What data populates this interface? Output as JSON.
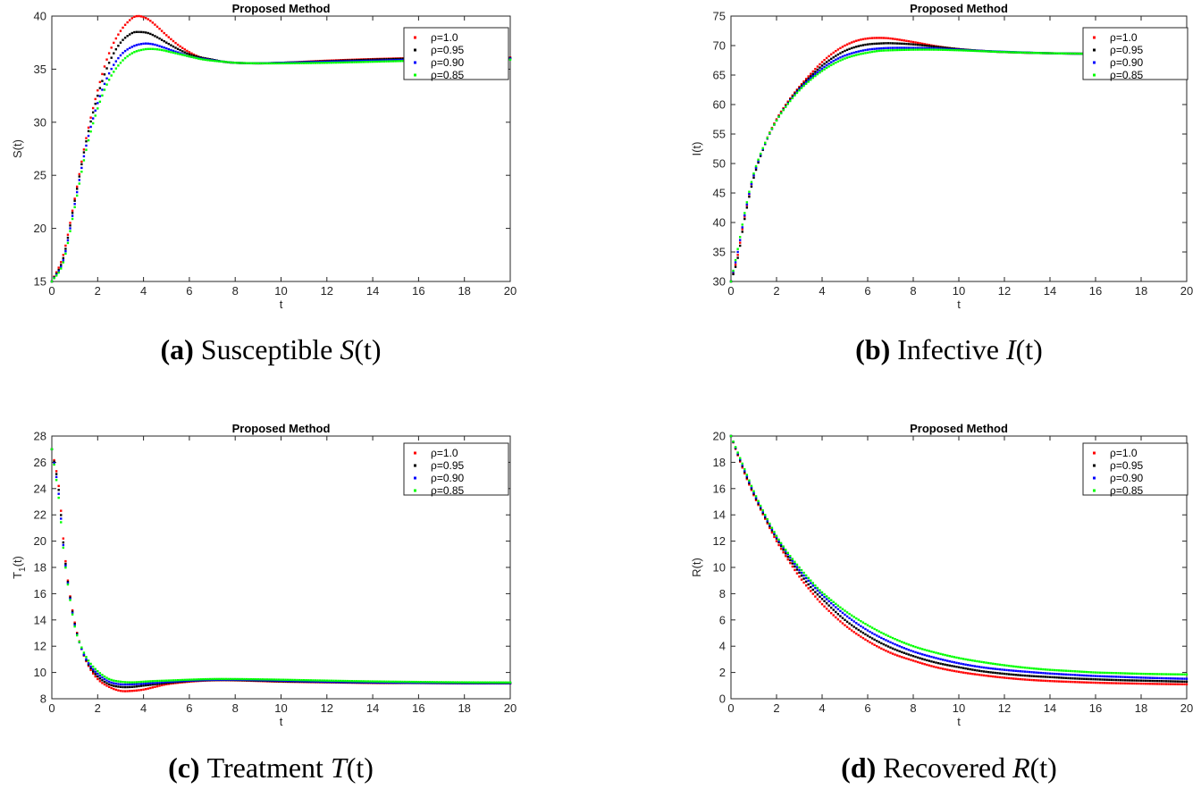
{
  "chart_data": [
    {
      "id": "S",
      "type": "scatter",
      "title": "Proposed Method",
      "xlabel": "t",
      "ylabel": "S(t)",
      "xlim": [
        0,
        20
      ],
      "ylim": [
        15,
        40
      ],
      "xticks": [
        0,
        2,
        4,
        6,
        8,
        10,
        12,
        14,
        16,
        18,
        20
      ],
      "yticks": [
        15,
        20,
        25,
        30,
        35,
        40
      ],
      "caption": {
        "tag": "(a)",
        "text": "Susceptible",
        "var": "S",
        "arg": "(t)"
      },
      "series": [
        {
          "name": "ρ=1.0",
          "color": "#ff0000",
          "x": [
            0,
            0.5,
            1,
            1.5,
            2,
            2.5,
            3,
            3.5,
            3.8,
            4.2,
            4.6,
            5,
            5.5,
            6,
            6.5,
            7,
            7.5,
            8,
            9,
            10,
            12,
            14,
            16,
            18,
            20
          ],
          "y": [
            15,
            17.5,
            22.8,
            28.5,
            33.0,
            36.5,
            38.6,
            39.8,
            40.0,
            39.7,
            39.0,
            38.2,
            37.3,
            36.6,
            36.1,
            35.9,
            35.7,
            35.6,
            35.55,
            35.6,
            35.8,
            35.95,
            36.05,
            36.1,
            36.1
          ]
        },
        {
          "name": "ρ=0.95",
          "color": "#000000",
          "x": [
            0,
            0.5,
            1,
            1.5,
            2,
            2.5,
            3,
            3.5,
            3.8,
            4.2,
            4.6,
            5,
            5.5,
            6,
            6.5,
            7,
            7.5,
            8,
            9,
            10,
            12,
            14,
            16,
            18,
            20
          ],
          "y": [
            15,
            17.2,
            22.6,
            28.2,
            32.5,
            35.6,
            37.5,
            38.4,
            38.5,
            38.4,
            38.0,
            37.5,
            36.9,
            36.4,
            36.1,
            35.9,
            35.7,
            35.6,
            35.55,
            35.6,
            35.75,
            35.9,
            36.0,
            36.0,
            36.05
          ]
        },
        {
          "name": "ρ=0.90",
          "color": "#0000ff",
          "x": [
            0,
            0.5,
            1,
            1.5,
            2,
            2.5,
            3,
            3.5,
            4,
            4.4,
            4.8,
            5.2,
            5.6,
            6,
            6.5,
            7,
            7.5,
            8,
            9,
            10,
            12,
            14,
            16,
            18,
            20
          ],
          "y": [
            15,
            17.0,
            22.3,
            27.8,
            31.8,
            34.6,
            36.3,
            37.1,
            37.4,
            37.35,
            37.1,
            36.8,
            36.5,
            36.2,
            36.0,
            35.85,
            35.7,
            35.6,
            35.55,
            35.6,
            35.7,
            35.8,
            35.9,
            35.95,
            36.0
          ]
        },
        {
          "name": "ρ=0.85",
          "color": "#00ff00",
          "x": [
            0,
            0.5,
            1,
            1.5,
            2,
            2.5,
            3,
            3.5,
            4,
            4.4,
            4.8,
            5.2,
            5.6,
            6,
            6.5,
            7,
            7.5,
            8,
            9,
            10,
            12,
            14,
            16,
            18,
            20
          ],
          "y": [
            15,
            16.8,
            22.0,
            27.4,
            31.3,
            34.0,
            35.6,
            36.5,
            36.85,
            36.9,
            36.8,
            36.6,
            36.4,
            36.2,
            35.95,
            35.8,
            35.7,
            35.6,
            35.55,
            35.55,
            35.6,
            35.7,
            35.8,
            35.85,
            35.9
          ]
        }
      ]
    },
    {
      "id": "I",
      "type": "scatter",
      "title": "Proposed Method",
      "xlabel": "t",
      "ylabel": "I(t)",
      "xlim": [
        0,
        20
      ],
      "ylim": [
        30,
        75
      ],
      "xticks": [
        0,
        2,
        4,
        6,
        8,
        10,
        12,
        14,
        16,
        18,
        20
      ],
      "yticks": [
        30,
        35,
        40,
        45,
        50,
        55,
        60,
        65,
        70,
        75
      ],
      "caption": {
        "tag": "(b)",
        "text": "Infective",
        "var": "I",
        "arg": "(t)"
      },
      "series": [
        {
          "name": "ρ=1.0",
          "color": "#ff0000",
          "x": [
            0,
            0.3,
            0.6,
            1,
            1.5,
            2,
            2.5,
            3,
            3.5,
            4,
            4.5,
            5,
            5.5,
            6,
            6.5,
            7,
            8,
            9,
            10,
            11,
            12,
            14,
            16,
            18,
            20
          ],
          "y": [
            30,
            34.5,
            41.0,
            48.0,
            53.5,
            57.5,
            60.5,
            63.0,
            65.2,
            67.2,
            68.8,
            70.0,
            70.8,
            71.2,
            71.3,
            71.2,
            70.6,
            69.9,
            69.4,
            69.1,
            68.9,
            68.7,
            68.6,
            68.55,
            68.5
          ]
        },
        {
          "name": "ρ=0.95",
          "color": "#000000",
          "x": [
            0,
            0.3,
            0.6,
            1,
            1.5,
            2,
            2.5,
            3,
            3.5,
            4,
            4.5,
            5,
            5.5,
            6,
            6.5,
            7,
            8,
            9,
            10,
            11,
            12,
            14,
            16,
            18,
            20
          ],
          "y": [
            30,
            34.0,
            40.6,
            47.6,
            53.3,
            57.3,
            60.3,
            62.8,
            64.8,
            66.6,
            68.0,
            69.1,
            69.8,
            70.2,
            70.35,
            70.4,
            70.2,
            69.8,
            69.4,
            69.1,
            68.9,
            68.7,
            68.6,
            68.55,
            68.5
          ]
        },
        {
          "name": "ρ=0.90",
          "color": "#0000ff",
          "x": [
            0,
            0.3,
            0.6,
            1,
            1.5,
            2,
            2.5,
            3,
            3.5,
            4,
            4.5,
            5,
            5.5,
            6,
            6.5,
            7,
            8,
            9,
            10,
            11,
            12,
            14,
            16,
            18,
            20
          ],
          "y": [
            30,
            35.0,
            41.2,
            48.0,
            53.4,
            57.3,
            60.2,
            62.6,
            64.5,
            66.1,
            67.4,
            68.3,
            68.9,
            69.3,
            69.5,
            69.6,
            69.6,
            69.5,
            69.3,
            69.1,
            68.95,
            68.7,
            68.6,
            68.55,
            68.5
          ]
        },
        {
          "name": "ρ=0.85",
          "color": "#00ff00",
          "x": [
            0,
            0.3,
            0.6,
            1,
            1.5,
            2,
            2.5,
            3,
            3.5,
            4,
            4.5,
            5,
            5.5,
            6,
            6.5,
            7,
            8,
            9,
            10,
            11,
            12,
            14,
            16,
            18,
            20
          ],
          "y": [
            30,
            35.5,
            41.6,
            48.3,
            53.5,
            57.3,
            60.1,
            62.4,
            64.2,
            65.7,
            66.9,
            67.8,
            68.4,
            68.8,
            69.1,
            69.2,
            69.3,
            69.3,
            69.2,
            69.05,
            68.9,
            68.7,
            68.6,
            68.55,
            68.5
          ]
        }
      ]
    },
    {
      "id": "T",
      "type": "scatter",
      "title": "Proposed Method",
      "xlabel": "t",
      "ylabel": "T",
      "ylabel_sub": "1",
      "ylabel_suffix": "(t)",
      "xlim": [
        0,
        20
      ],
      "ylim": [
        8,
        28
      ],
      "xticks": [
        0,
        2,
        4,
        6,
        8,
        10,
        12,
        14,
        16,
        18,
        20
      ],
      "yticks": [
        8,
        10,
        12,
        14,
        16,
        18,
        20,
        22,
        24,
        26,
        28
      ],
      "caption": {
        "tag": "(c)",
        "text": "Treatment",
        "var": "T",
        "arg": "(t)"
      },
      "series": [
        {
          "name": "ρ=1.0",
          "color": "#ff0000",
          "x": [
            0,
            0.3,
            0.5,
            0.7,
            1,
            1.3,
            1.6,
            2,
            2.5,
            3,
            3.5,
            4,
            4.5,
            5,
            6,
            7,
            8,
            9,
            10,
            12,
            14,
            16,
            18,
            20
          ],
          "y": [
            27,
            24.2,
            20.2,
            17.0,
            13.8,
            11.8,
            10.5,
            9.5,
            8.9,
            8.6,
            8.6,
            8.7,
            8.9,
            9.1,
            9.3,
            9.4,
            9.4,
            9.35,
            9.3,
            9.25,
            9.2,
            9.2,
            9.18,
            9.18
          ]
        },
        {
          "name": "ρ=0.95",
          "color": "#000000",
          "x": [
            0,
            0.3,
            0.5,
            0.7,
            1,
            1.3,
            1.6,
            2,
            2.5,
            3,
            3.5,
            4,
            4.5,
            5,
            6,
            7,
            8,
            9,
            10,
            12,
            14,
            16,
            18,
            20
          ],
          "y": [
            27,
            23.9,
            19.9,
            16.9,
            13.7,
            11.8,
            10.6,
            9.7,
            9.1,
            8.9,
            8.9,
            9.0,
            9.1,
            9.2,
            9.35,
            9.42,
            9.42,
            9.38,
            9.33,
            9.27,
            9.22,
            9.2,
            9.18,
            9.18
          ]
        },
        {
          "name": "ρ=0.90",
          "color": "#0000ff",
          "x": [
            0,
            0.3,
            0.5,
            0.7,
            1,
            1.3,
            1.6,
            2,
            2.5,
            3,
            3.5,
            4,
            4.5,
            5,
            6,
            7,
            8,
            9,
            10,
            12,
            14,
            16,
            18,
            20
          ],
          "y": [
            27,
            23.6,
            19.7,
            16.8,
            13.6,
            11.8,
            10.7,
            9.9,
            9.3,
            9.1,
            9.1,
            9.15,
            9.22,
            9.28,
            9.38,
            9.44,
            9.45,
            9.42,
            9.38,
            9.3,
            9.25,
            9.22,
            9.2,
            9.2
          ]
        },
        {
          "name": "ρ=0.85",
          "color": "#00ff00",
          "x": [
            0,
            0.3,
            0.5,
            0.7,
            1,
            1.3,
            1.6,
            2,
            2.5,
            3,
            3.5,
            4,
            4.5,
            5,
            6,
            7,
            8,
            9,
            10,
            12,
            14,
            16,
            18,
            20
          ],
          "y": [
            27,
            23.3,
            19.5,
            16.7,
            13.5,
            11.9,
            10.9,
            10.1,
            9.5,
            9.3,
            9.25,
            9.3,
            9.35,
            9.38,
            9.45,
            9.5,
            9.5,
            9.48,
            9.45,
            9.38,
            9.32,
            9.28,
            9.25,
            9.24
          ]
        }
      ]
    },
    {
      "id": "R",
      "type": "scatter",
      "title": "Proposed Method",
      "xlabel": "t",
      "ylabel": "R(t)",
      "xlim": [
        0,
        20
      ],
      "ylim": [
        0,
        20
      ],
      "xticks": [
        0,
        2,
        4,
        6,
        8,
        10,
        12,
        14,
        16,
        18,
        20
      ],
      "yticks": [
        0,
        2,
        4,
        6,
        8,
        10,
        12,
        14,
        16,
        18,
        20
      ],
      "caption": {
        "tag": "(d)",
        "text": "Recovered",
        "var": "R",
        "arg": "(t)"
      },
      "series": [
        {
          "name": "ρ=1.0",
          "color": "#ff0000",
          "x": [
            0,
            0.5,
            1,
            1.5,
            2,
            2.5,
            3,
            3.5,
            4,
            5,
            6,
            7,
            8,
            9,
            10,
            11,
            12,
            13,
            14,
            15,
            16,
            17,
            18,
            19,
            20
          ],
          "y": [
            20,
            17.6,
            15.5,
            13.7,
            12.0,
            10.6,
            9.3,
            8.2,
            7.2,
            5.6,
            4.4,
            3.5,
            2.9,
            2.4,
            2.05,
            1.8,
            1.6,
            1.45,
            1.35,
            1.28,
            1.22,
            1.18,
            1.15,
            1.12,
            1.1
          ]
        },
        {
          "name": "ρ=0.95",
          "color": "#000000",
          "x": [
            0,
            0.5,
            1,
            1.5,
            2,
            2.5,
            3,
            3.5,
            4,
            5,
            6,
            7,
            8,
            9,
            10,
            11,
            12,
            13,
            14,
            15,
            16,
            17,
            18,
            19,
            20
          ],
          "y": [
            20,
            17.7,
            15.6,
            13.8,
            12.2,
            10.8,
            9.6,
            8.5,
            7.6,
            6.0,
            4.8,
            3.9,
            3.25,
            2.75,
            2.4,
            2.1,
            1.9,
            1.75,
            1.65,
            1.55,
            1.48,
            1.42,
            1.38,
            1.34,
            1.3
          ]
        },
        {
          "name": "ρ=0.90",
          "color": "#0000ff",
          "x": [
            0,
            0.5,
            1,
            1.5,
            2,
            2.5,
            3,
            3.5,
            4,
            5,
            6,
            7,
            8,
            9,
            10,
            11,
            12,
            13,
            14,
            15,
            16,
            17,
            18,
            19,
            20
          ],
          "y": [
            20,
            17.8,
            15.7,
            13.9,
            12.3,
            11.0,
            9.8,
            8.8,
            7.9,
            6.4,
            5.2,
            4.3,
            3.6,
            3.1,
            2.7,
            2.4,
            2.2,
            2.05,
            1.92,
            1.82,
            1.73,
            1.67,
            1.61,
            1.56,
            1.52
          ]
        },
        {
          "name": "ρ=0.85",
          "color": "#00ff00",
          "x": [
            0,
            0.5,
            1,
            1.5,
            2,
            2.5,
            3,
            3.5,
            4,
            5,
            6,
            7,
            8,
            9,
            10,
            11,
            12,
            13,
            14,
            15,
            16,
            17,
            18,
            19,
            20
          ],
          "y": [
            20,
            17.9,
            15.8,
            14.0,
            12.4,
            11.1,
            10.0,
            9.0,
            8.1,
            6.7,
            5.6,
            4.7,
            4.0,
            3.5,
            3.1,
            2.8,
            2.55,
            2.35,
            2.2,
            2.1,
            2.0,
            1.95,
            1.9,
            1.87,
            1.85
          ]
        }
      ]
    }
  ]
}
